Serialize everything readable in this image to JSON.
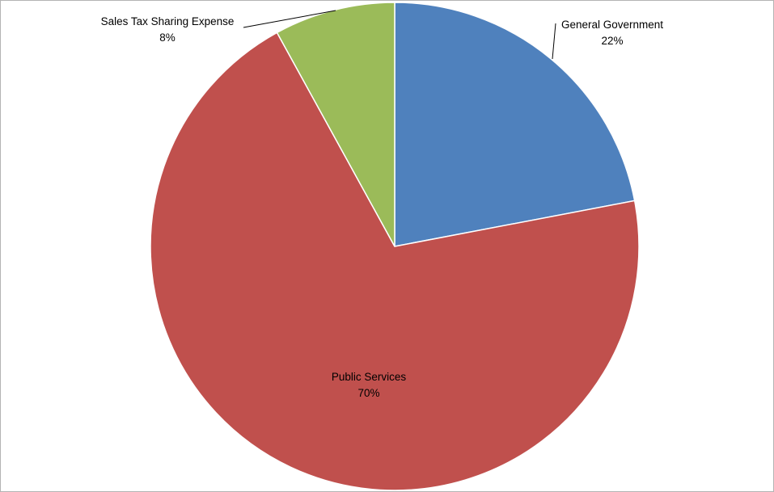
{
  "chart_data": {
    "type": "pie",
    "title": "",
    "slices": [
      {
        "label": "General Government",
        "percent_label": "22%",
        "value": 22,
        "color": "#4f81bd"
      },
      {
        "label": "Public Services",
        "percent_label": "70%",
        "value": 70,
        "color": "#c0504d"
      },
      {
        "label": "Sales Tax Sharing Expense",
        "percent_label": "8%",
        "value": 8,
        "color": "#9bbb59"
      }
    ],
    "start_angle": "12 o'clock",
    "direction": "clockwise",
    "legend": "none",
    "data_labels": "category name and percentage"
  }
}
